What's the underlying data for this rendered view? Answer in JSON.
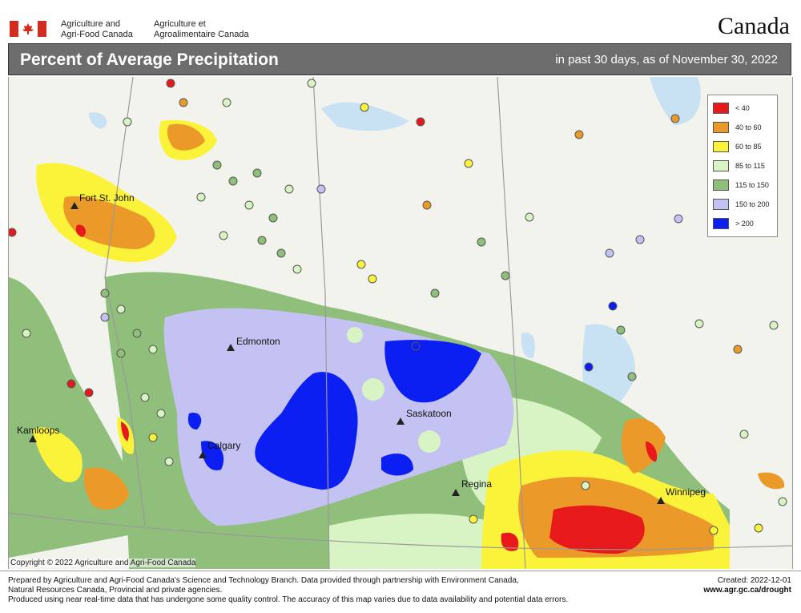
{
  "header": {
    "dept_en_line1": "Agriculture and",
    "dept_en_line2": "Agri-Food Canada",
    "dept_fr_line1": "Agriculture et",
    "dept_fr_line2": "Agroalimentaire Canada",
    "wordmark": "Canada"
  },
  "title": {
    "main": "Percent of Average Precipitation",
    "sub": "in past 30 days, as of November 30, 2022"
  },
  "legend": [
    {
      "label": "< 40",
      "color": "#e8191b"
    },
    {
      "label": "40 to 60",
      "color": "#eb9a2a"
    },
    {
      "label": "60 to 85",
      "color": "#fbf33a"
    },
    {
      "label": "85 to 115",
      "color": "#d8f4c4"
    },
    {
      "label": "115 to 150",
      "color": "#8fbf7a"
    },
    {
      "label": "150 to 200",
      "color": "#c4c2f2"
    },
    {
      "label": "> 200",
      "color": "#0b1ff2"
    }
  ],
  "cities": {
    "fort_st_john": "Fort St. John",
    "edmonton": "Edmonton",
    "kamloops": "Kamloops",
    "calgary": "Calgary",
    "saskatoon": "Saskatoon",
    "regina": "Regina",
    "winnipeg": "Winnipeg"
  },
  "map_copyright": "Copyright © 2022 Agriculture and Agri-Food Canada",
  "footer": {
    "line1": "Prepared by Agriculture and Agri-Food Canada's Science and Technology Branch. Data provided through partnership with Environment Canada,",
    "line2": "Natural Resources Canada, Provincial and private agencies.",
    "line3": "Produced using near real-time data that has undergone some quality control. The accuracy of this map varies due to data availability and potential data errors.",
    "created": "Created:  2022-12-01",
    "url": "www.agr.gc.ca/drought"
  }
}
